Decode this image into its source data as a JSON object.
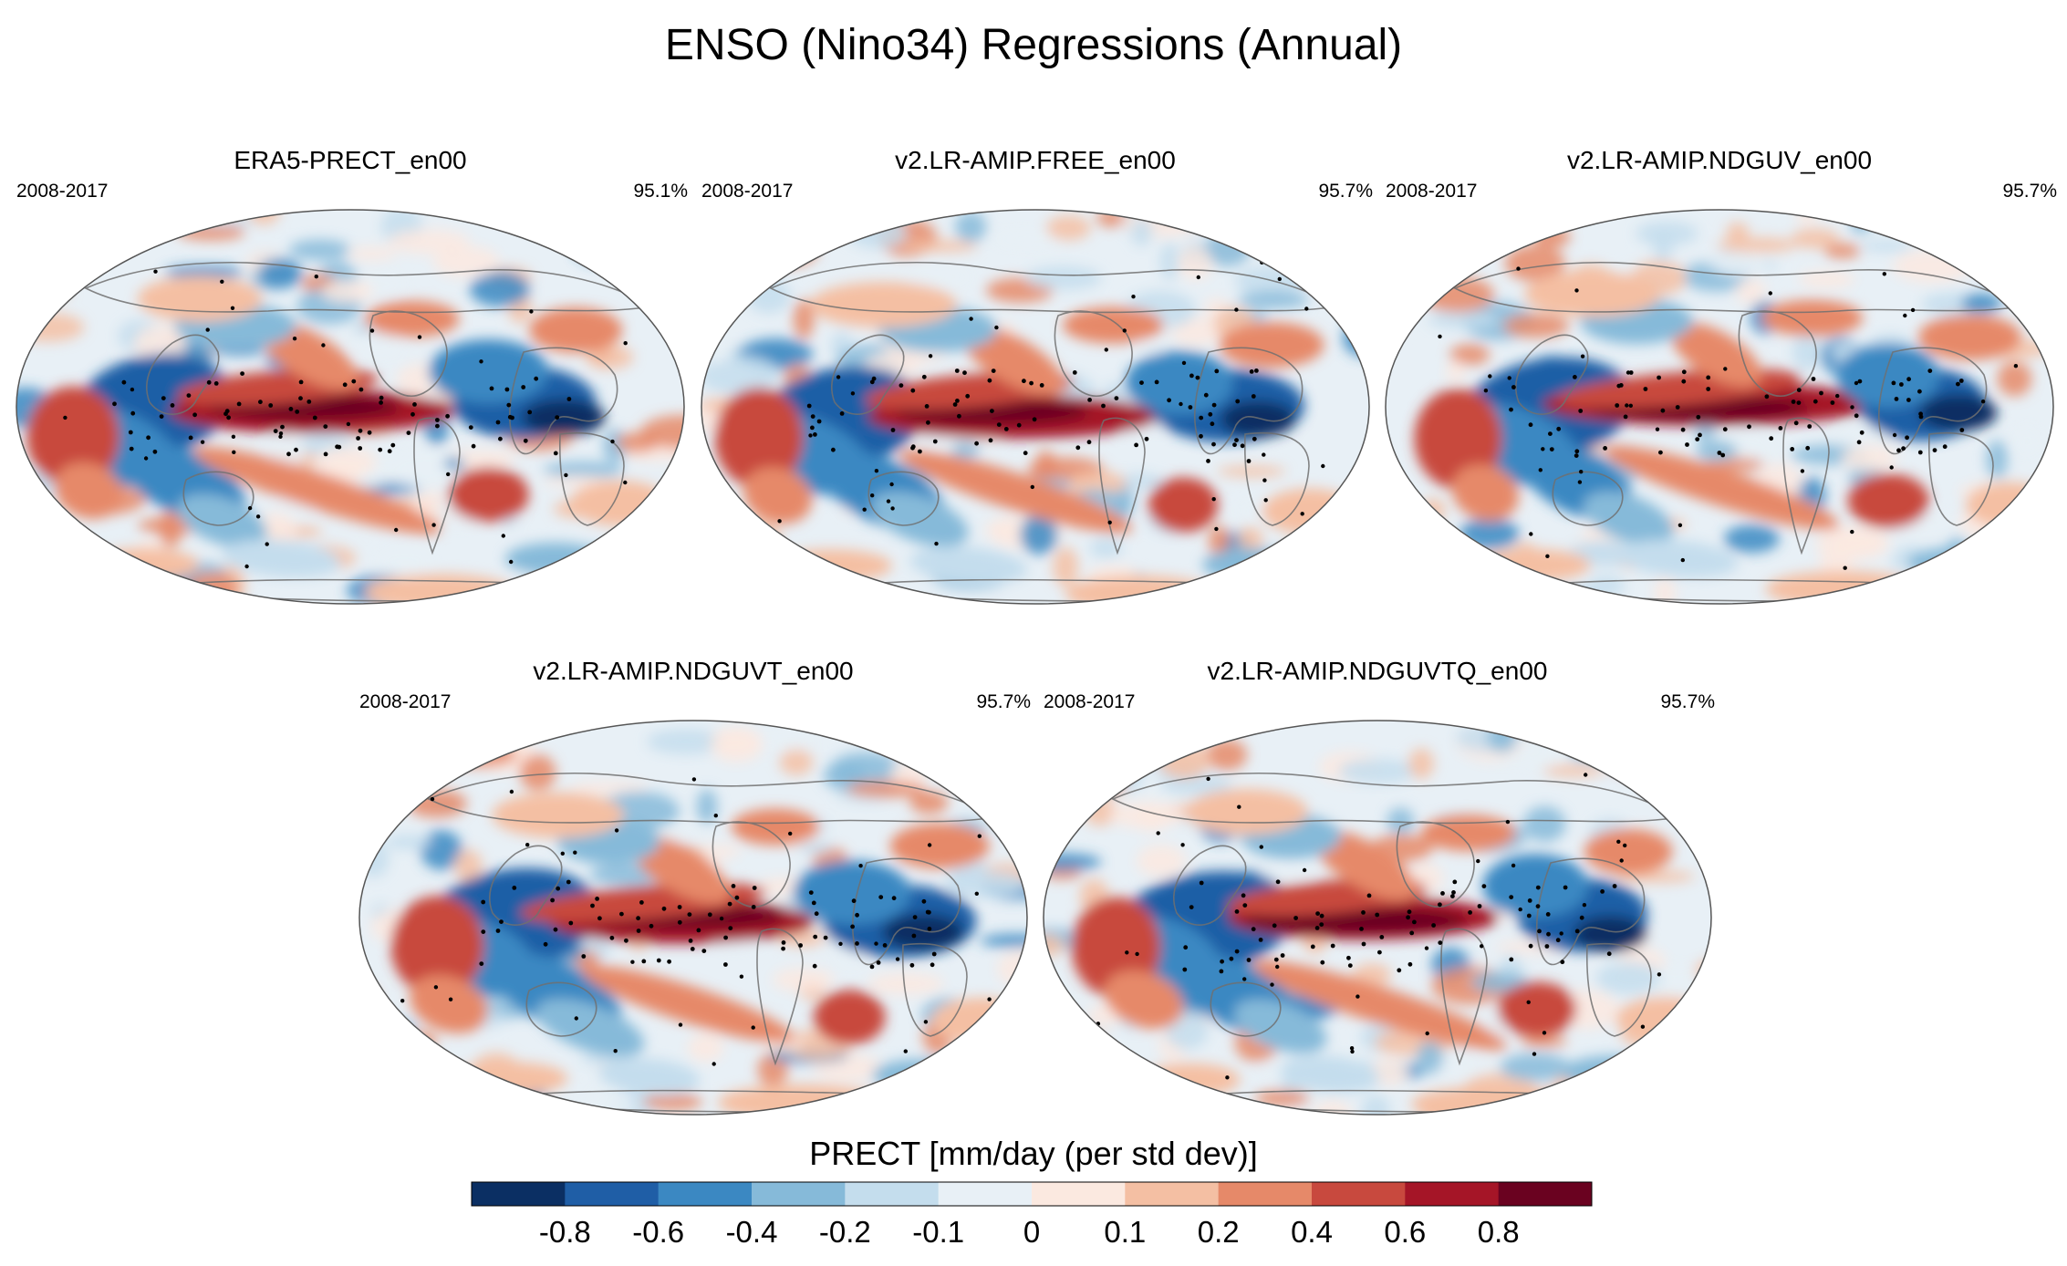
{
  "title": "ENSO (Nino34) Regressions (Annual)",
  "panels": [
    {
      "title": "ERA5-PRECT_en00",
      "years": "2008-2017",
      "pct": "95.1%",
      "pattern": "obs",
      "pos": "top-left"
    },
    {
      "title": "v2.LR-AMIP.FREE_en00",
      "years": "2008-2017",
      "pct": "95.7%",
      "pattern": "free",
      "pos": "top-center"
    },
    {
      "title": "v2.LR-AMIP.NDGUV_en00",
      "years": "2008-2017",
      "pct": "95.7%",
      "pattern": "nduv",
      "pos": "top-right"
    },
    {
      "title": "v2.LR-AMIP.NDGUVT_en00",
      "years": "2008-2017",
      "pct": "95.7%",
      "pattern": "nduvt",
      "pos": "bottom-left"
    },
    {
      "title": "v2.LR-AMIP.NDGUVTQ_en00",
      "years": "2008-2017",
      "pct": "95.7%",
      "pattern": "nduvtq",
      "pos": "bottom-right"
    }
  ],
  "colorbar": {
    "label": "PRECT [mm/day (per std dev)]",
    "tick_labels": [
      "-0.8",
      "-0.6",
      "-0.4",
      "-0.2",
      "-0.1",
      "0",
      "0.1",
      "0.2",
      "0.4",
      "0.6",
      "0.8"
    ],
    "colors": [
      "#0b2f63",
      "#1f5ea6",
      "#3b88c2",
      "#86bad9",
      "#c4dded",
      "#e8f0f6",
      "#fbe9e0",
      "#f4bfa3",
      "#e68969",
      "#c8493e",
      "#a51527",
      "#6a0220"
    ]
  },
  "chart_data": {
    "type": "heatmap",
    "projection": "Robinson (global map)",
    "variable": "PRECT",
    "units": "mm/day (per std dev)",
    "levels": [
      -0.8,
      -0.6,
      -0.4,
      -0.2,
      -0.1,
      0,
      0.1,
      0.2,
      0.4,
      0.6,
      0.8
    ],
    "period": "2008-2017",
    "significance_stippling": true
  }
}
